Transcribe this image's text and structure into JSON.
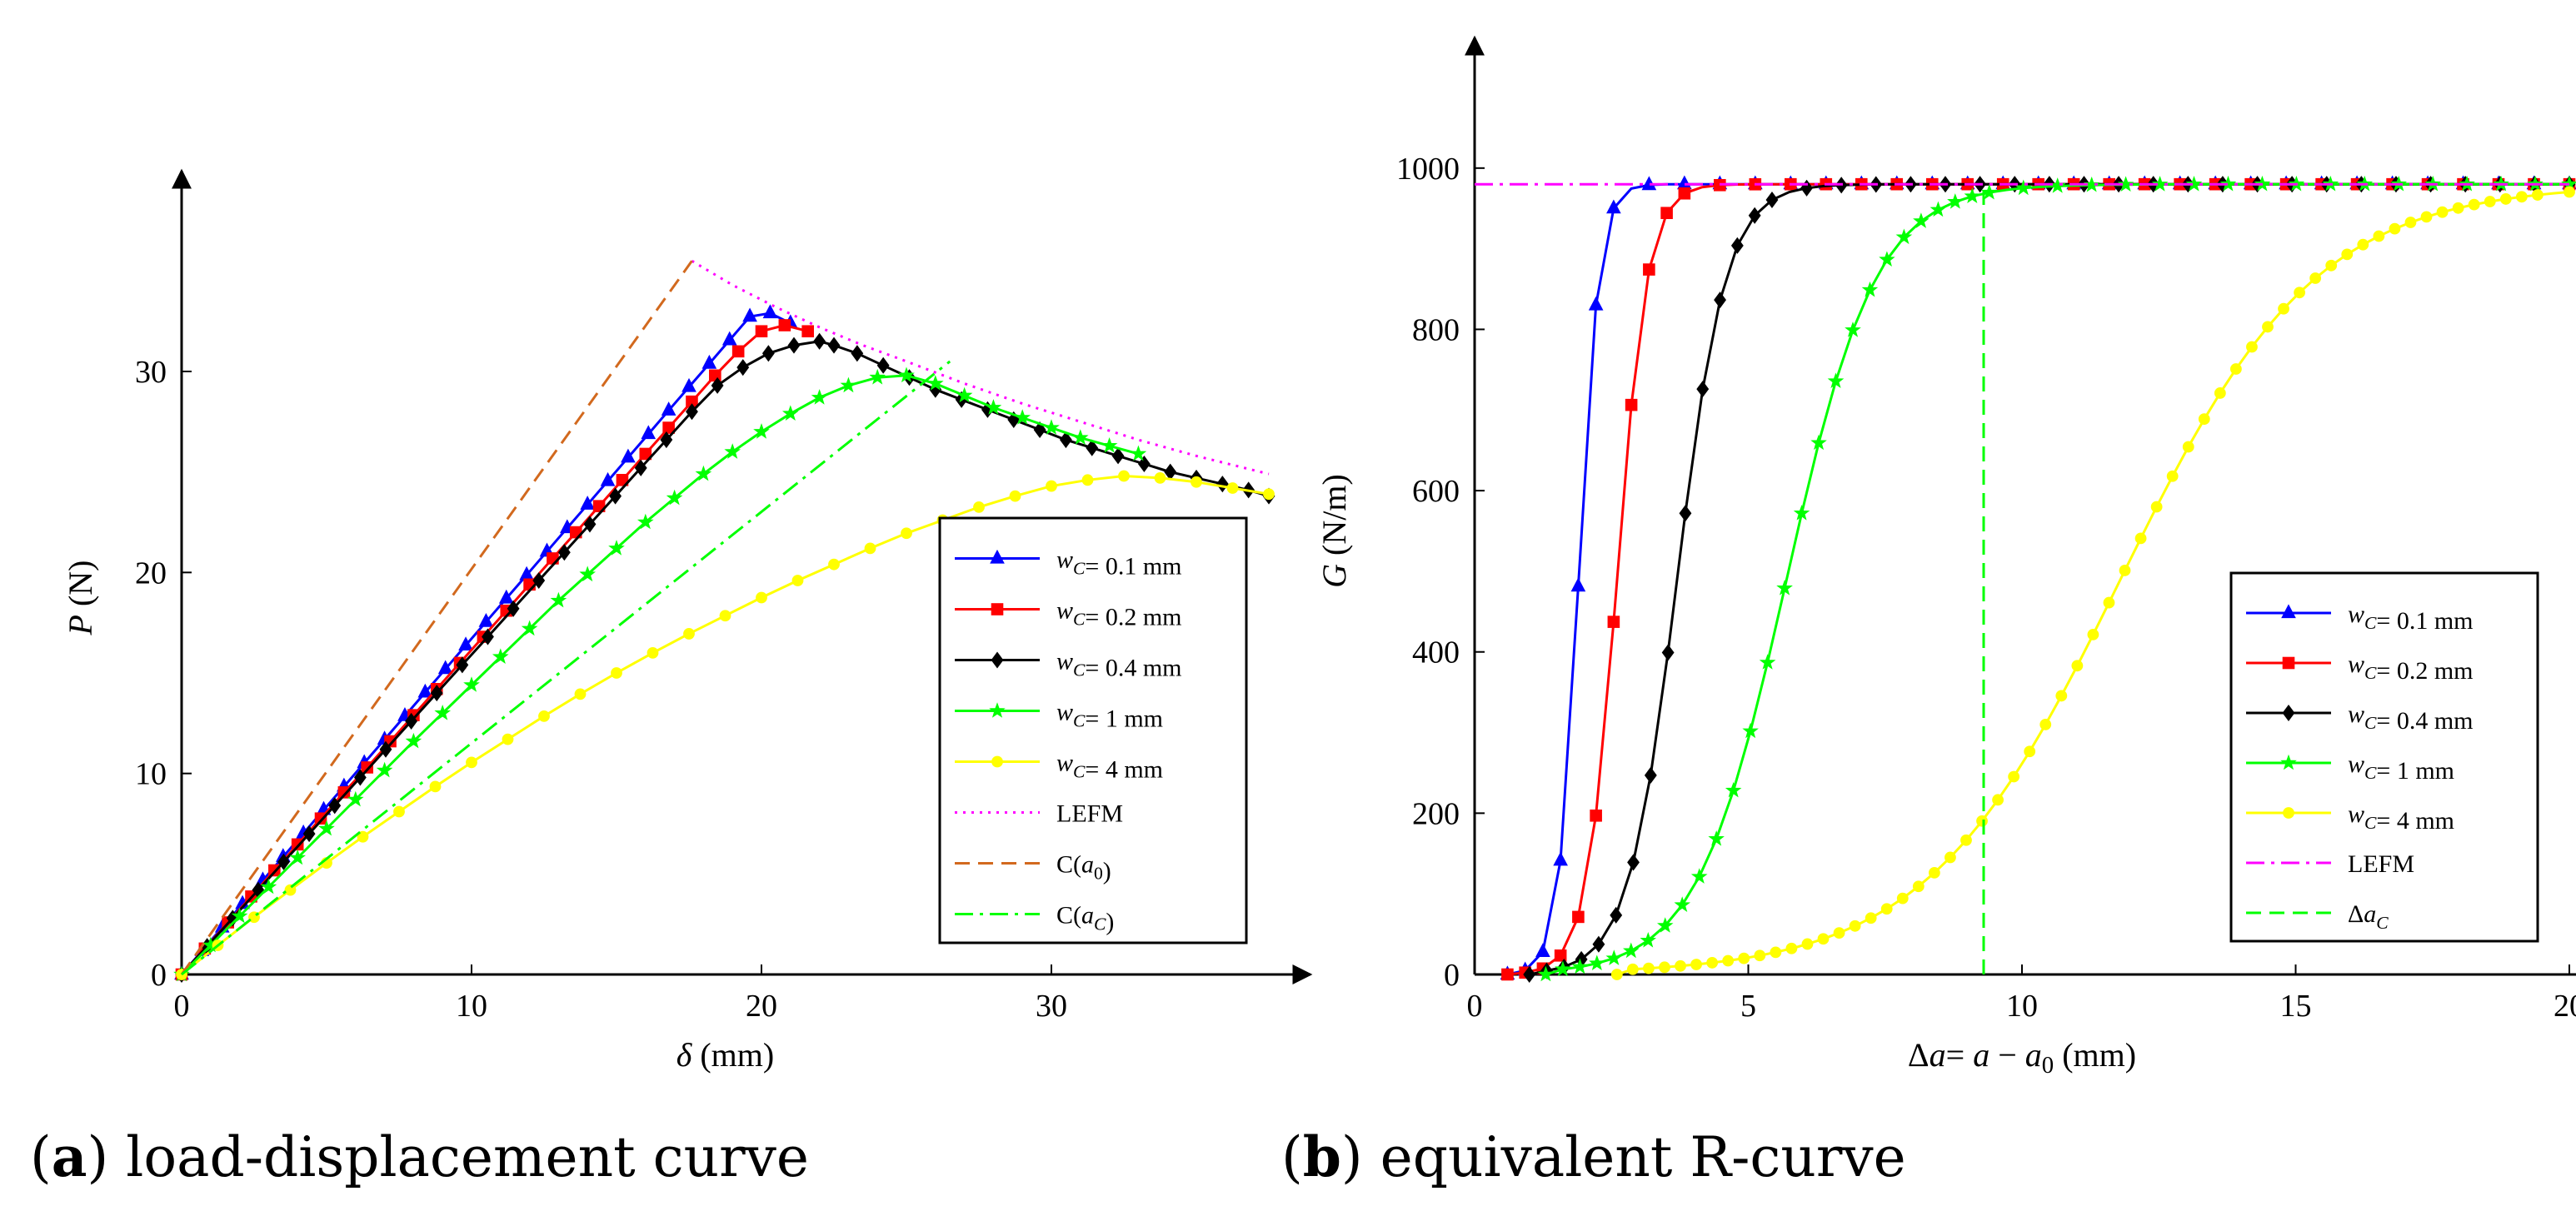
{
  "chart_data": [
    {
      "type": "line",
      "panel": "a",
      "xlabel": "δ (mm)",
      "ylabel": "P (N)",
      "xlim": [
        0,
        37.5
      ],
      "ylim": [
        0,
        37.5
      ],
      "xticks": [
        0,
        10,
        20,
        30
      ],
      "yticks": [
        0,
        10,
        20,
        30
      ],
      "legend": [
        "w_C= 0.1 mm",
        "w_C= 0.2 mm",
        "w_C= 0.4 mm",
        "w_C= 1 mm",
        "w_C= 4 mm",
        "LEFM",
        "C(a_0)",
        "C(a_C)"
      ],
      "legend_position": "right",
      "series": [
        {
          "name": "w_C= 0.1 mm",
          "color": "#0000ff",
          "marker": "triangle",
          "x": [
            0,
            0.7,
            1.4,
            2.1,
            2.8,
            3.5,
            4.2,
            4.9,
            5.6,
            6.3,
            7.0,
            7.7,
            8.4,
            9.1,
            9.8,
            10.5,
            11.2,
            11.9,
            12.6,
            13.3,
            14.0,
            14.7,
            15.4,
            16.1,
            16.8,
            17.5,
            18.2,
            18.9,
            19.6,
            20.3,
            21.0
          ],
          "y": [
            0,
            1.17,
            2.34,
            3.51,
            4.68,
            5.85,
            7.02,
            8.19,
            9.35,
            10.52,
            11.69,
            12.86,
            14.03,
            15.2,
            16.37,
            17.54,
            18.71,
            19.87,
            21.04,
            22.21,
            23.38,
            24.55,
            25.72,
            26.89,
            28.06,
            29.23,
            30.39,
            31.56,
            32.73,
            32.9,
            32.4
          ]
        },
        {
          "name": "w_C= 0.2 mm",
          "color": "#ff0000",
          "marker": "square",
          "x": [
            0,
            0.8,
            1.6,
            2.4,
            3.2,
            4.0,
            4.8,
            5.6,
            6.4,
            7.2,
            8.0,
            8.8,
            9.6,
            10.4,
            11.2,
            12.0,
            12.8,
            13.6,
            14.4,
            15.2,
            16.0,
            16.8,
            17.6,
            18.4,
            19.2,
            20.0,
            20.8,
            21.6
          ],
          "y": [
            0,
            1.29,
            2.59,
            3.88,
            5.18,
            6.47,
            7.76,
            9.06,
            10.3,
            11.6,
            12.9,
            14.2,
            15.5,
            16.8,
            18.1,
            19.4,
            20.7,
            22.0,
            23.3,
            24.6,
            25.9,
            27.2,
            28.5,
            29.8,
            31.0,
            32.0,
            32.3,
            32.0
          ]
        },
        {
          "name": "w_C= 0.4 mm",
          "color": "#000000",
          "marker": "diamond",
          "x": [
            0,
            0.88,
            1.76,
            2.64,
            3.52,
            4.4,
            5.28,
            6.16,
            7.04,
            7.92,
            8.8,
            9.68,
            10.56,
            11.44,
            12.32,
            13.2,
            14.08,
            14.96,
            15.84,
            16.72,
            17.6,
            18.48,
            19.36,
            20.24,
            21.12,
            22.0,
            22.5,
            23.3,
            24.2,
            25.1,
            26.0,
            26.9,
            27.8,
            28.7,
            29.6,
            30.5,
            31.4,
            32.3,
            33.2,
            34.1,
            35.0,
            35.9,
            36.8,
            37.5
          ],
          "y": [
            0,
            1.4,
            2.8,
            4.2,
            5.6,
            7.0,
            8.4,
            9.8,
            11.2,
            12.6,
            14.0,
            15.4,
            16.8,
            18.2,
            19.6,
            21.0,
            22.4,
            23.8,
            25.2,
            26.6,
            28.0,
            29.3,
            30.2,
            30.9,
            31.3,
            31.5,
            31.3,
            30.9,
            30.3,
            29.7,
            29.1,
            28.6,
            28.1,
            27.6,
            27.1,
            26.6,
            26.2,
            25.8,
            25.4,
            25.0,
            24.7,
            24.4,
            24.1,
            23.8
          ]
        },
        {
          "name": "w_C= 1 mm",
          "color": "#00ff00",
          "marker": "star",
          "x": [
            0,
            1.0,
            2.0,
            3.0,
            4.0,
            5.0,
            6.0,
            7.0,
            8.0,
            9.0,
            10.0,
            11.0,
            12.0,
            13.0,
            14.0,
            15.0,
            16.0,
            17.0,
            18.0,
            19.0,
            20.0,
            21.0,
            22.0,
            23.0,
            24.0,
            25.0,
            26.0,
            27.0,
            28.0,
            29.0,
            30.0,
            31.0,
            32.0,
            33.0
          ],
          "y": [
            0,
            1.45,
            2.9,
            4.35,
            5.8,
            7.25,
            8.7,
            10.15,
            11.6,
            13.0,
            14.4,
            15.8,
            17.2,
            18.6,
            19.9,
            21.2,
            22.5,
            23.7,
            24.9,
            26.0,
            27.0,
            27.9,
            28.7,
            29.3,
            29.7,
            29.8,
            29.4,
            28.8,
            28.2,
            27.7,
            27.2,
            26.7,
            26.3,
            25.9
          ]
        },
        {
          "name": "w_C= 4 mm",
          "color": "#ffff00",
          "marker": "circle",
          "x": [
            0,
            1.25,
            2.5,
            3.75,
            5.0,
            6.25,
            7.5,
            8.75,
            10.0,
            11.25,
            12.5,
            13.75,
            15.0,
            16.25,
            17.5,
            18.75,
            20.0,
            21.25,
            22.5,
            23.75,
            25.0,
            26.25,
            27.5,
            28.75,
            30.0,
            31.25,
            32.5,
            33.75,
            35.0,
            36.25,
            37.5
          ],
          "y": [
            0,
            1.45,
            2.85,
            4.2,
            5.55,
            6.85,
            8.1,
            9.35,
            10.55,
            11.7,
            12.85,
            13.95,
            15.0,
            16.0,
            16.95,
            17.85,
            18.75,
            19.6,
            20.4,
            21.2,
            21.95,
            22.6,
            23.25,
            23.8,
            24.3,
            24.6,
            24.8,
            24.7,
            24.5,
            24.2,
            23.9
          ]
        },
        {
          "name": "LEFM",
          "color": "#ff00ff",
          "dash": "dotted",
          "x": [
            17.6,
            19,
            20.5,
            22,
            23.5,
            25,
            27,
            29,
            31,
            33,
            35,
            37.5
          ],
          "y": [
            35.5,
            34.3,
            33.2,
            32.2,
            31.3,
            30.5,
            29.4,
            28.4,
            27.5,
            26.6,
            25.8,
            24.9
          ]
        },
        {
          "name": "C(a_0)",
          "color": "#d2691e",
          "dash": "dashed",
          "x": [
            0,
            17.6
          ],
          "y": [
            0,
            35.5
          ]
        },
        {
          "name": "C(a_C)",
          "color": "#00ff00",
          "dash": "dashdot",
          "x": [
            0,
            26.5
          ],
          "y": [
            0,
            30.5
          ]
        }
      ]
    },
    {
      "type": "line",
      "panel": "b",
      "xlabel": "Δa= a − a_0 (mm)",
      "ylabel": "G (N/m)",
      "xlim": [
        0,
        20
      ],
      "ylim": [
        0,
        1100
      ],
      "xticks": [
        0,
        5,
        10,
        15,
        20
      ],
      "yticks": [
        0,
        200,
        400,
        600,
        800,
        1000
      ],
      "legend": [
        "w_C= 0.1 mm",
        "w_C= 0.2 mm",
        "w_C= 0.4 mm",
        "w_C= 1 mm",
        "w_C= 4 mm",
        "LEFM",
        "Δa_C"
      ],
      "legend_position": "right",
      "G_plateau": 980,
      "delta_aC": 9.3,
      "series": [
        {
          "name": "w_C= 0.1 mm",
          "color": "#0000ff",
          "marker": "triangle",
          "center": 1.9,
          "width": 0.5,
          "start": 0.6,
          "end": 20
        },
        {
          "name": "w_C= 0.2 mm",
          "color": "#ff0000",
          "marker": "square",
          "center": 2.6,
          "width": 0.75,
          "start": 0.6,
          "end": 20
        },
        {
          "name": "w_C= 0.4 mm",
          "color": "#000000",
          "marker": "diamond",
          "center": 3.7,
          "width": 1.2,
          "start": 1.0,
          "end": 20
        },
        {
          "name": "w_C= 1 mm",
          "color": "#00ff00",
          "marker": "star",
          "center": 5.7,
          "width": 2.2,
          "start": 1.3,
          "end": 20
        },
        {
          "name": "w_C= 4 mm",
          "color": "#ffff00",
          "marker": "circle",
          "center": 11.8,
          "width": 4.8,
          "start": 2.6,
          "end": 20
        },
        {
          "name": "LEFM",
          "color": "#ff00ff",
          "dash": "dashdot",
          "x": [
            0,
            20
          ],
          "y": [
            980,
            980
          ]
        },
        {
          "name": "Δa_C",
          "color": "#00ff00",
          "dash": "dashed",
          "x": [
            9.3,
            9.3
          ],
          "y": [
            0,
            980
          ]
        }
      ]
    }
  ],
  "captions": {
    "a_label": "a",
    "a_text": "load-displacement curve",
    "b_label": "b",
    "b_text": "equivalent R-curve"
  }
}
